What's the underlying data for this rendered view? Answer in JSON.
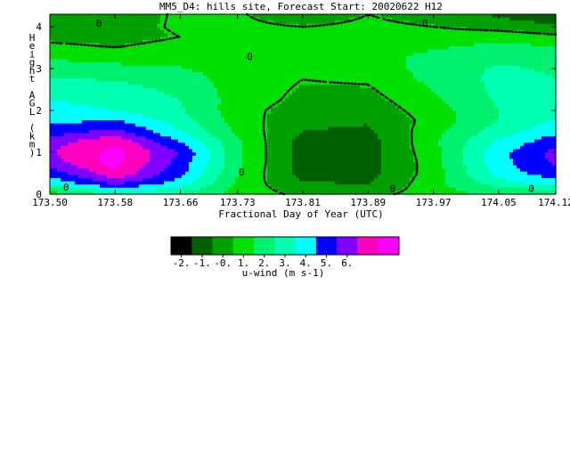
{
  "chart_data": {
    "type": "heatmap",
    "title": "MM5_D4: hills site,  Forecast Start: 20020622 H12",
    "xlabel": "Fractional Day of Year (UTC)",
    "ylabel": "Height AGL (km)",
    "x_ticks": [
      "173.50",
      "173.58",
      "173.66",
      "173.73",
      "173.81",
      "173.89",
      "173.97",
      "174.05",
      "174.12"
    ],
    "y_ticks": [
      "0",
      "1",
      "2",
      "3",
      "4"
    ],
    "xlim": [
      173.5,
      174.12
    ],
    "ylim": [
      0,
      4.3
    ],
    "contour_label": "0",
    "colorbar": {
      "label": "u-wind (m s-1)",
      "tick_labels": [
        "-2.",
        "-1.",
        "-0.",
        "1.",
        "2.",
        "3.",
        "4.",
        "5.",
        "6."
      ],
      "colors": [
        "#000000",
        "#006000",
        "#00a000",
        "#00e000",
        "#00f070",
        "#00ffb0",
        "#00ffff",
        "#0000ff",
        "#8000ff",
        "#ff00c0",
        "#ff00ff"
      ]
    },
    "x": [
      173.5,
      173.58,
      173.66,
      173.73,
      173.81,
      173.89,
      173.97,
      174.05,
      174.12
    ],
    "y": [
      0,
      0.25,
      0.5,
      0.75,
      1.0,
      1.25,
      1.5,
      1.75,
      2.0,
      2.25,
      2.5,
      2.75,
      3.0,
      3.25,
      3.5,
      3.75,
      4.0,
      4.3
    ],
    "values": [
      [
        0.2,
        1.8,
        1.5,
        0.5,
        -0.2,
        -0.2,
        0.3,
        1.0,
        0.7
      ],
      [
        2.5,
        4.2,
        2.8,
        0.6,
        -0.8,
        -0.9,
        0.5,
        2.0,
        2.8
      ],
      [
        3.5,
        5.5,
        3.5,
        0.8,
        -1.2,
        -1.2,
        0.4,
        2.7,
        3.8
      ],
      [
        4.5,
        6.0,
        3.7,
        1.0,
        -1.3,
        -1.2,
        0.4,
        2.9,
        4.2
      ],
      [
        4.8,
        6.0,
        4.0,
        1.0,
        -1.3,
        -1.2,
        0.5,
        3.0,
        4.3
      ],
      [
        4.5,
        5.5,
        3.2,
        0.9,
        -1.2,
        -1.2,
        0.6,
        2.5,
        3.8
      ],
      [
        3.6,
        4.3,
        2.4,
        0.6,
        -0.9,
        -1.0,
        0.5,
        2.0,
        3.0
      ],
      [
        3.0,
        3.3,
        2.0,
        0.4,
        -0.6,
        -0.8,
        0.3,
        1.6,
        2.5
      ],
      [
        2.8,
        2.4,
        1.7,
        0.3,
        -0.4,
        -0.5,
        0.4,
        1.6,
        2.0
      ],
      [
        2.4,
        2.1,
        1.6,
        0.4,
        -0.2,
        -0.3,
        0.6,
        1.7,
        1.9
      ],
      [
        2.1,
        1.9,
        1.4,
        0.4,
        -0.1,
        -0.1,
        0.8,
        1.8,
        1.7
      ],
      [
        1.7,
        1.5,
        1.2,
        0.4,
        0.0,
        0.1,
        1.0,
        1.8,
        1.6
      ],
      [
        1.2,
        1.0,
        0.8,
        0.4,
        0.2,
        0.3,
        1.1,
        1.7,
        1.5
      ],
      [
        0.7,
        0.5,
        0.6,
        0.5,
        0.4,
        0.5,
        1.0,
        1.4,
        1.3
      ],
      [
        0.2,
        0.0,
        0.3,
        0.4,
        0.4,
        0.5,
        0.7,
        1.0,
        0.9
      ],
      [
        -0.2,
        -0.3,
        0.0,
        0.3,
        0.3,
        0.4,
        0.4,
        0.5,
        0.2
      ],
      [
        -0.4,
        -0.3,
        0.1,
        0.2,
        0.0,
        0.2,
        0.0,
        -0.3,
        -0.6
      ],
      [
        -0.6,
        -0.4,
        0.1,
        0.1,
        -0.6,
        0.0,
        -0.4,
        -1.0,
        -1.8
      ]
    ]
  }
}
